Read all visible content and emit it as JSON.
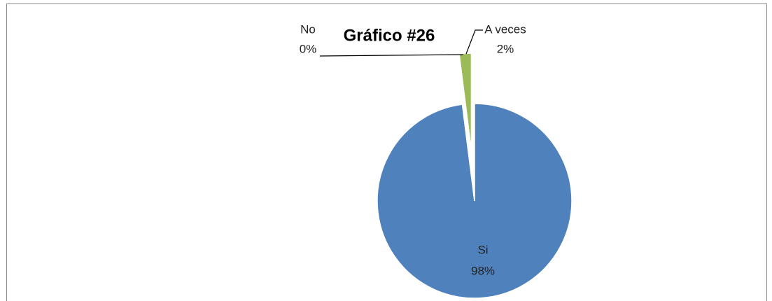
{
  "chart_data": {
    "type": "pie",
    "title": "Gráfico #26",
    "categories": [
      "Si",
      "No",
      "A veces"
    ],
    "values": [
      98,
      0,
      2
    ],
    "value_labels": [
      "98%",
      "0%",
      "2%"
    ],
    "colors": [
      "#4f81bd",
      "#c0504d",
      "#9bbb59"
    ],
    "exploded": [
      false,
      false,
      true
    ]
  }
}
